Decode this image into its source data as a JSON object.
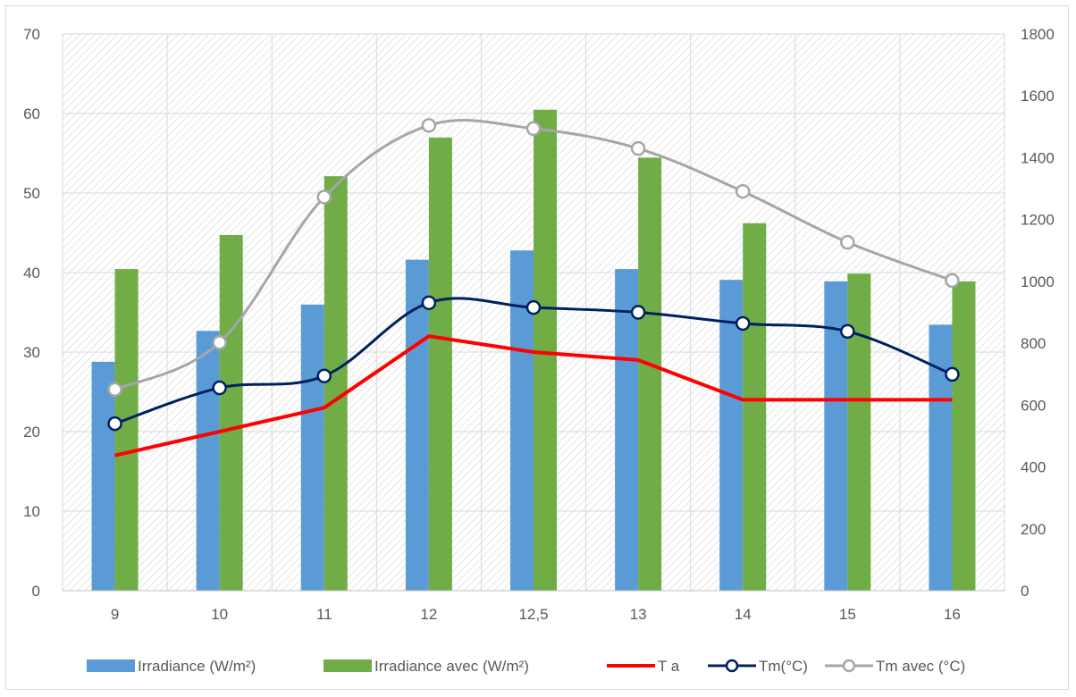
{
  "chart_data": {
    "type": "bar",
    "categories": [
      "9",
      "10",
      "11",
      "12",
      "12,5",
      "13",
      "14",
      "15",
      "16"
    ],
    "y_left": {
      "ylim": [
        0,
        70
      ],
      "ticks": [
        "0",
        "10",
        "20",
        "30",
        "40",
        "50",
        "60",
        "70"
      ]
    },
    "y_right": {
      "ylim": [
        0,
        1800
      ],
      "ticks": [
        "0",
        "200",
        "400",
        "600",
        "800",
        "1000",
        "1200",
        "1400",
        "1600",
        "1800"
      ]
    },
    "series": [
      {
        "name": "Irradiance (W/m²)",
        "kind": "bar",
        "axis": "right",
        "color": "#5b9bd5",
        "values": [
          740,
          840,
          925,
          1070,
          1100,
          1040,
          1005,
          1000,
          860
        ]
      },
      {
        "name": "Irradiance avec  (W/m²)",
        "kind": "bar",
        "axis": "right",
        "color": "#70ad47",
        "values": [
          1040,
          1150,
          1340,
          1465,
          1555,
          1400,
          1188,
          1025,
          1000
        ]
      },
      {
        "name": "T a",
        "kind": "line",
        "axis": "left",
        "color": "#ff0000",
        "smooth": false,
        "marker": "none",
        "values": [
          17,
          20,
          23,
          32,
          30,
          29,
          24,
          24,
          24
        ]
      },
      {
        "name": "Tm(°C)",
        "kind": "line",
        "axis": "left",
        "color": "#002060",
        "smooth": true,
        "marker": "circle",
        "values": [
          21,
          25.5,
          27,
          36.2,
          35.6,
          35,
          33.6,
          32.6,
          27.2
        ]
      },
      {
        "name": "Tm avec (°C)",
        "kind": "line",
        "axis": "left",
        "color": "#a6a6a6",
        "smooth": true,
        "marker": "circle",
        "values": [
          25.3,
          31.2,
          49.5,
          58.5,
          58.1,
          55.6,
          50.2,
          43.8,
          39
        ]
      }
    ],
    "grid": true,
    "legend_position": "bottom",
    "background_pattern": "diagonal-hatch"
  }
}
